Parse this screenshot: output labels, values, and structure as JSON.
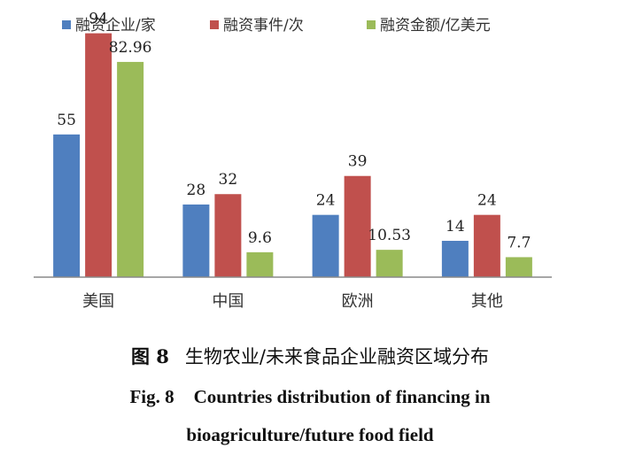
{
  "chart_data": {
    "type": "bar",
    "categories": [
      "美国",
      "中国",
      "欧洲",
      "其他"
    ],
    "series": [
      {
        "name": "融资企业/家",
        "values": [
          55,
          28,
          24,
          14
        ],
        "labels": [
          "55",
          "28",
          "24",
          "14"
        ],
        "color": "#4f7fbf"
      },
      {
        "name": "融资事件/次",
        "values": [
          94,
          32,
          39,
          24
        ],
        "labels": [
          "94",
          "32",
          "39",
          "24"
        ],
        "color": "#c0504d"
      },
      {
        "name": "融资金额/亿美元",
        "values": [
          82.96,
          9.6,
          10.53,
          7.7
        ],
        "labels": [
          "82.96",
          "9.6",
          "10.53",
          "7.7"
        ],
        "color": "#9bbb59"
      }
    ],
    "ylim": [
      0,
      100
    ],
    "grid": false,
    "legend": "top"
  },
  "caption": {
    "zh_number": "图 8",
    "zh_title": "生物农业/未来食品企业融资区域分布",
    "en_number": "Fig. 8",
    "en_title_line1": "Countries distribution of financing in",
    "en_title_line2": "bioagriculture/future food field"
  }
}
